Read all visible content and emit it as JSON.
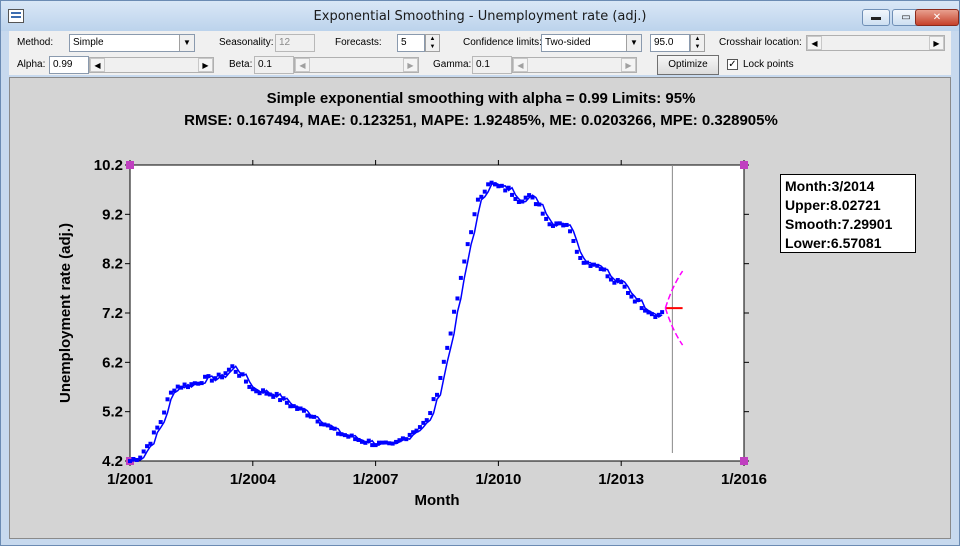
{
  "window": {
    "title": "Exponential Smoothing - Unemployment rate (adj.)",
    "buttons": {
      "minimize": "▬",
      "maximize": "▭",
      "close": "✕"
    }
  },
  "toolbar": {
    "method_label": "Method:",
    "method_value": "Simple",
    "seasonality_label": "Seasonality:",
    "seasonality_value": "12",
    "forecasts_label": "Forecasts:",
    "forecasts_value": "5",
    "confidence_label": "Confidence limits:",
    "confidence_value": "Two-sided",
    "confidence_pct": "95.0",
    "crosshair_label": "Crosshair location:",
    "alpha_label": "Alpha:",
    "alpha_value": "0.99",
    "beta_label": "Beta:",
    "beta_value": "0.1",
    "gamma_label": "Gamma:",
    "gamma_value": "0.1",
    "optimize_label": "Optimize",
    "lock_points_label": "Lock points",
    "lock_points_checked": true
  },
  "crosshair": {
    "month": "Month:3/2014",
    "upper": "Upper:8.02721",
    "smooth": "Smooth:7.29901",
    "lower": "Lower:6.57081"
  },
  "chart_data": {
    "type": "line",
    "title": "Simple exponential smoothing with alpha = 0.99 Limits: 95%",
    "subtitle": "RMSE: 0.167494, MAE: 0.123251, MAPE: 1.92485%, ME: 0.0203266, MPE: 0.328905%",
    "xlabel": "Month",
    "ylabel": "Unemployment rate (adj.)",
    "xlim": [
      2001.0,
      2016.0
    ],
    "ylim": [
      4.2,
      10.2
    ],
    "xticks": [
      "1/2001",
      "1/2004",
      "1/2007",
      "1/2010",
      "1/2013",
      "1/2016"
    ],
    "yticks": [
      "4.2",
      "5.2",
      "6.2",
      "7.2",
      "8.2",
      "9.2",
      "10.2"
    ],
    "crosshair_x": 2014.25,
    "observed_color": "#0000ff",
    "smoothed_color": "#0000ff",
    "forecast_color": "#ff0000",
    "limits_color": "#ff00ff",
    "anchors": [
      [
        2001.0,
        4.2
      ],
      [
        2001.25,
        4.3
      ],
      [
        2001.5,
        4.6
      ],
      [
        2001.75,
        5.0
      ],
      [
        2001.95,
        5.5
      ],
      [
        2002.1,
        5.7
      ],
      [
        2002.5,
        5.75
      ],
      [
        2002.8,
        5.85
      ],
      [
        2003.2,
        5.9
      ],
      [
        2003.5,
        6.1
      ],
      [
        2003.75,
        5.9
      ],
      [
        2004.0,
        5.65
      ],
      [
        2004.5,
        5.55
      ],
      [
        2005.0,
        5.3
      ],
      [
        2005.5,
        5.1
      ],
      [
        2006.0,
        4.8
      ],
      [
        2006.5,
        4.65
      ],
      [
        2007.0,
        4.55
      ],
      [
        2007.4,
        4.5
      ],
      [
        2007.75,
        4.7
      ],
      [
        2008.0,
        4.85
      ],
      [
        2008.25,
        5.0
      ],
      [
        2008.5,
        5.6
      ],
      [
        2008.75,
        6.5
      ],
      [
        2009.0,
        7.5
      ],
      [
        2009.25,
        8.6
      ],
      [
        2009.5,
        9.45
      ],
      [
        2009.75,
        9.85
      ],
      [
        2010.0,
        9.75
      ],
      [
        2010.25,
        9.7
      ],
      [
        2010.5,
        9.5
      ],
      [
        2010.75,
        9.55
      ],
      [
        2011.0,
        9.4
      ],
      [
        2011.25,
        9.0
      ],
      [
        2011.5,
        9.05
      ],
      [
        2011.75,
        8.9
      ],
      [
        2012.0,
        8.3
      ],
      [
        2012.25,
        8.2
      ],
      [
        2012.5,
        8.15
      ],
      [
        2012.75,
        7.85
      ],
      [
        2013.0,
        7.8
      ],
      [
        2013.25,
        7.55
      ],
      [
        2013.5,
        7.35
      ],
      [
        2013.75,
        7.2
      ],
      [
        2013.92,
        7.15
      ],
      [
        2014.08,
        7.3
      ]
    ],
    "forecast": [
      [
        2014.08,
        7.3
      ],
      [
        2014.5,
        7.3
      ]
    ],
    "upper_limit": [
      [
        2014.08,
        7.3
      ],
      [
        2014.25,
        7.75
      ],
      [
        2014.5,
        8.05
      ]
    ],
    "lower_limit": [
      [
        2014.08,
        7.3
      ],
      [
        2014.25,
        6.85
      ],
      [
        2014.5,
        6.55
      ]
    ]
  }
}
